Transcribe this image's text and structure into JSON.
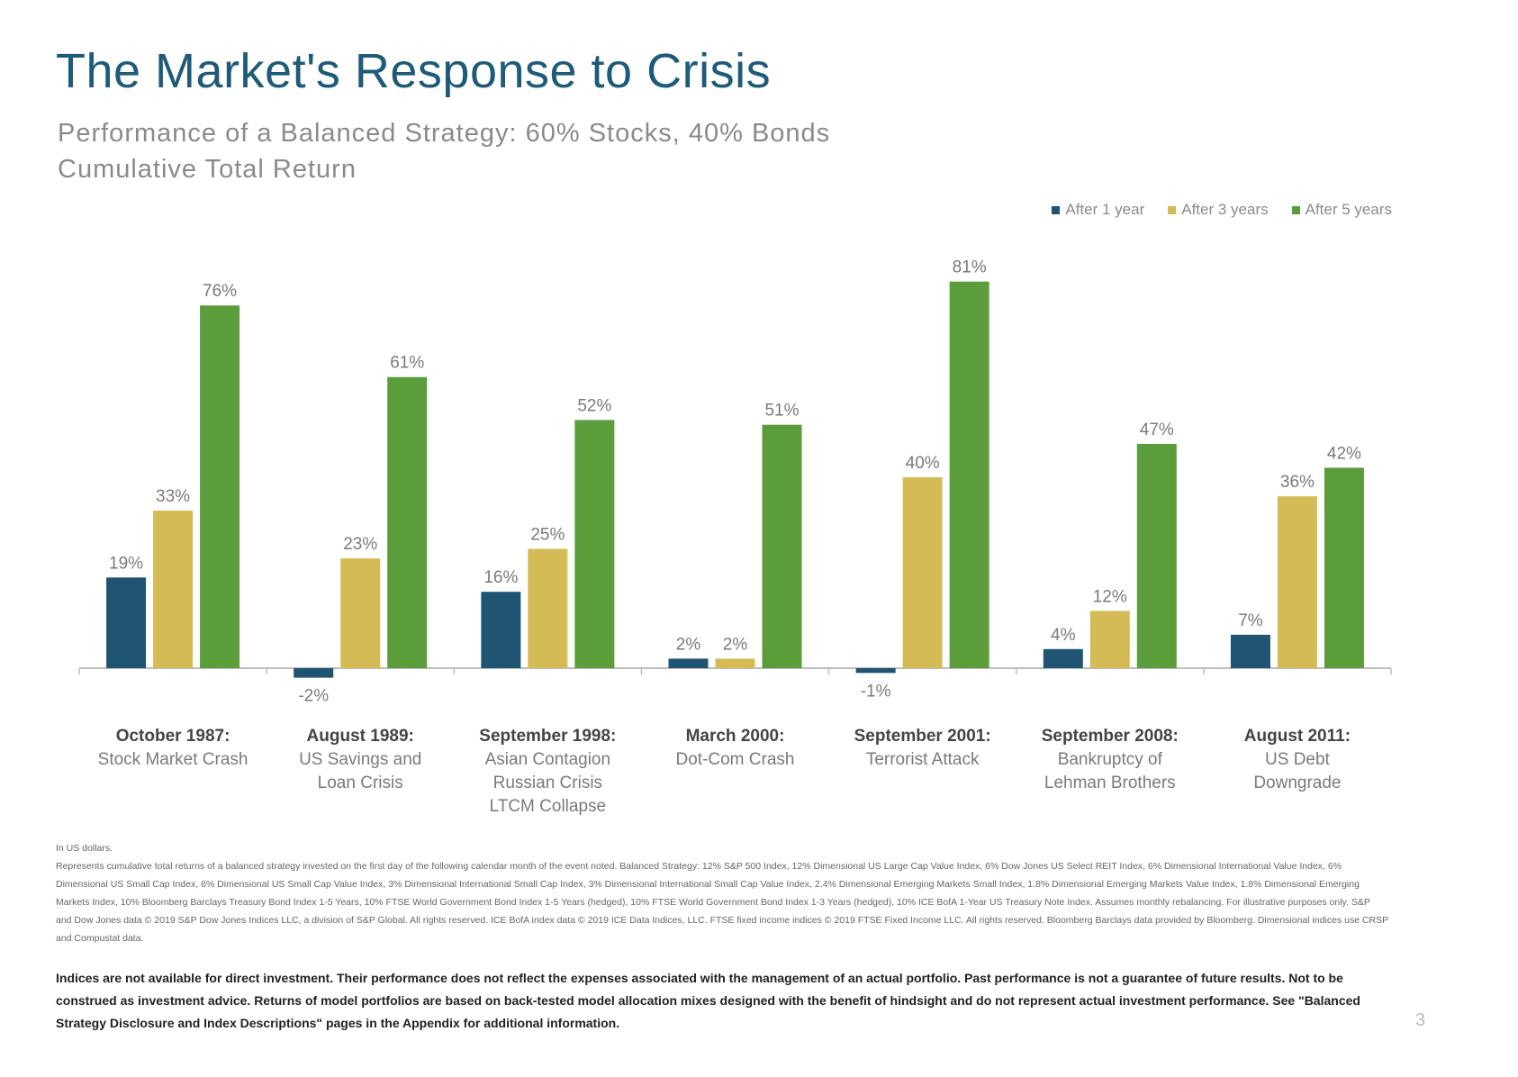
{
  "title": "The Market's Response to Crisis",
  "subtitle1": "Performance of a Balanced Strategy: 60% Stocks, 40% Bonds",
  "subtitle2": "Cumulative Total Return",
  "legend": {
    "items": [
      {
        "label": "After 1 year",
        "color": "#1f5473"
      },
      {
        "label": "After 3 years",
        "color": "#d4bb55"
      },
      {
        "label": "After 5 years",
        "color": "#5b9c3b"
      }
    ]
  },
  "chart_data": {
    "type": "bar",
    "title": "The Market's Response to Crisis",
    "ylabel": "Cumulative Total Return",
    "xlabel": "",
    "ylim": [
      -5,
      85
    ],
    "grid": false,
    "legend_position": "top-right",
    "categories": [
      {
        "bold": "October 1987:",
        "lines": [
          "Stock Market Crash"
        ]
      },
      {
        "bold": "August 1989:",
        "lines": [
          "US Savings and",
          "Loan Crisis"
        ]
      },
      {
        "bold": "September 1998:",
        "lines": [
          "Asian Contagion",
          "Russian Crisis",
          "LTCM Collapse"
        ]
      },
      {
        "bold": "March 2000:",
        "lines": [
          "Dot-Com Crash"
        ]
      },
      {
        "bold": "September 2001:",
        "lines": [
          "Terrorist Attack"
        ]
      },
      {
        "bold": "September 2008:",
        "lines": [
          "Bankruptcy of",
          "Lehman Brothers"
        ]
      },
      {
        "bold": "August 2011:",
        "lines": [
          "US Debt",
          "Downgrade"
        ]
      }
    ],
    "series": [
      {
        "name": "After 1 year",
        "values": [
          19,
          -2,
          16,
          2,
          -1,
          4,
          7
        ],
        "labels": [
          "19%",
          "-2%",
          "16%",
          "2%",
          "-1%",
          "4%",
          "7%"
        ]
      },
      {
        "name": "After 3 years",
        "values": [
          33,
          23,
          25,
          2,
          40,
          12,
          36
        ],
        "labels": [
          "33%",
          "23%",
          "25%",
          "2%",
          "40%",
          "12%",
          "36%"
        ]
      },
      {
        "name": "After 5 years",
        "values": [
          76,
          61,
          52,
          51,
          81,
          47,
          42
        ],
        "labels": [
          "76%",
          "61%",
          "52%",
          "51%",
          "81%",
          "47%",
          "42%"
        ]
      }
    ]
  },
  "footnotes": {
    "line1": "In US dollars.",
    "line2": "Represents cumulative total returns of a balanced strategy invested on the first day of the following calendar month of the event noted. Balanced Strategy: 12% S&P 500 Index, 12% Dimensional US Large Cap Value Index, 6% Dow Jones US Select REIT Index, 6% Dimensional International Value Index, 6% Dimensional US Small Cap Index, 6% Dimensional US Small Cap Value Index, 3% Dimensional International Small Cap Index, 3% Dimensional International Small Cap Value Index, 2.4% Dimensional Emerging Markets Small Index, 1.8% Dimensional Emerging Markets Value Index, 1.8% Dimensional Emerging Markets Index, 10% Bloomberg Barclays Treasury Bond Index 1-5 Years, 10% FTSE World Government Bond Index 1-5 Years (hedged), 10% FTSE World Government Bond Index 1-3 Years (hedged), 10% ICE BofA 1-Year US Treasury Note Index. Assumes monthly rebalancing. For illustrative purposes only. S&P and Dow Jones data © 2019 S&P Dow Jones Indices LLC, a division of S&P Global. All rights reserved. ICE BofA index data © 2019 ICE Data Indices, LLC. FTSE fixed income indices © 2019 FTSE Fixed Income LLC. All rights reserved. Bloomberg Barclays data provided by Bloomberg. Dimensional indices use CRSP and Compustat data."
  },
  "disclaimer": "Indices are not available for direct investment. Their performance does not reflect the expenses associated with the management of an actual portfolio. Past performance is not a guarantee of future results. Not to be construed as investment advice. Returns of model portfolios are based on back-tested model allocation mixes designed with the benefit of hindsight and do not represent actual investment performance. See \"Balanced Strategy Disclosure and Index Descriptions\" pages in the Appendix for additional information.",
  "page_number": "3"
}
